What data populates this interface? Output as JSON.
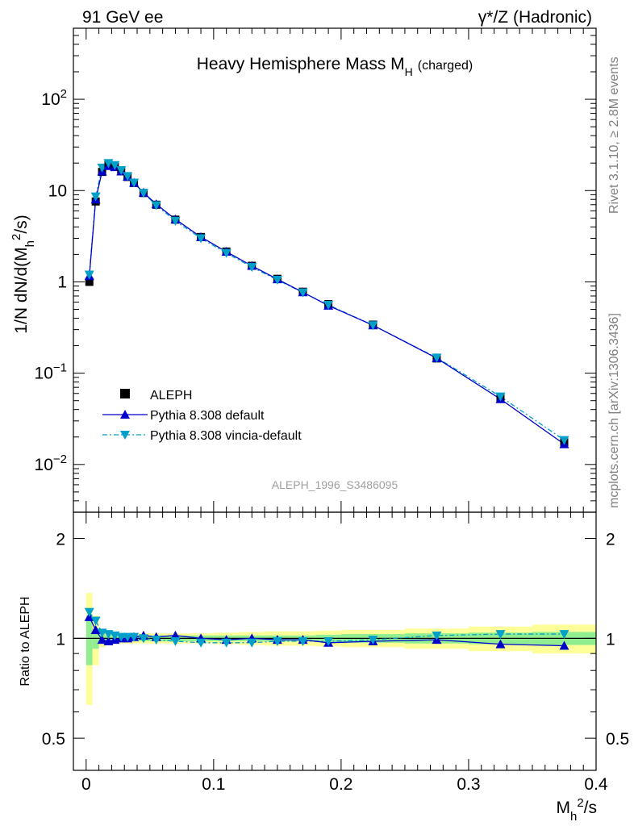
{
  "header": {
    "left": "91 GeV ee",
    "right": "γ*/Z (Hadronic)"
  },
  "side_labels": {
    "rivet": "Rivet 3.1.10, ≥ 2.8M events",
    "mcplots": "mcplots.cern.ch [arXiv:1306.3436]"
  },
  "chart_data": [
    {
      "type": "scatter",
      "panel": "main",
      "title": "Heavy Hemisphere Mass M",
      "title_sub": "H",
      "title_suffix": "(charged)",
      "ylabel": "1/N dN/d(M_h^2/s)",
      "yscale": "log",
      "ylim": [
        0.003,
        600
      ],
      "xlim": [
        -0.01,
        0.4
      ],
      "y_tick_labels": [
        "10^-2",
        "10^-1",
        "1",
        "10",
        "10^2"
      ],
      "analysis_id": "ALEPH_1996_S3486095",
      "legend": {
        "position": "bottom-left",
        "entries": [
          "ALEPH",
          "Pythia 8.308 default",
          "Pythia 8.308 vincia-default"
        ]
      },
      "colors": {
        "aleph": "#000000",
        "default": "#0000cc",
        "vincia": "#00a0c8"
      },
      "x": [
        0.0025,
        0.0075,
        0.0125,
        0.0175,
        0.0225,
        0.0275,
        0.0325,
        0.0375,
        0.045,
        0.055,
        0.07,
        0.09,
        0.11,
        0.13,
        0.15,
        0.17,
        0.19,
        0.225,
        0.275,
        0.325,
        0.375
      ],
      "series": [
        {
          "name": "ALEPH",
          "marker": "square",
          "values": [
            1.0,
            7.6,
            16.0,
            19.0,
            18.4,
            16.3,
            14.1,
            12.1,
            9.4,
            7.0,
            4.8,
            3.1,
            2.15,
            1.5,
            1.08,
            0.78,
            0.57,
            0.34,
            0.145,
            0.054,
            0.0175
          ]
        },
        {
          "name": "Pythia 8.308 default",
          "marker": "triangle-up",
          "values": [
            1.16,
            8.0,
            16.2,
            18.6,
            18.1,
            16.2,
            14.2,
            12.2,
            9.5,
            7.1,
            4.85,
            3.1,
            2.14,
            1.5,
            1.07,
            0.77,
            0.55,
            0.335,
            0.146,
            0.052,
            0.0167
          ]
        },
        {
          "name": "Pythia 8.308 vincia-default",
          "marker": "triangle-down",
          "values": [
            1.2,
            8.6,
            17.8,
            20.0,
            19.0,
            16.7,
            14.4,
            12.2,
            9.4,
            6.9,
            4.65,
            3.0,
            2.07,
            1.45,
            1.05,
            0.765,
            0.56,
            0.335,
            0.148,
            0.0555,
            0.0185
          ]
        }
      ]
    },
    {
      "type": "scatter",
      "panel": "ratio",
      "ylabel": "Ratio to ALEPH",
      "xlabel": "M_h^2/s",
      "ylim": [
        0.4,
        2.4
      ],
      "xlim": [
        -0.01,
        0.4
      ],
      "y_tick_labels": [
        "0.5",
        "1",
        "2"
      ],
      "x_tick_labels": [
        "0",
        "0.1",
        "0.2",
        "0.3",
        "0.4"
      ],
      "bins": [
        [
          0,
          0.005
        ],
        [
          0.005,
          0.01
        ],
        [
          0.01,
          0.015
        ],
        [
          0.015,
          0.02
        ],
        [
          0.02,
          0.025
        ],
        [
          0.025,
          0.03
        ],
        [
          0.03,
          0.035
        ],
        [
          0.035,
          0.04
        ],
        [
          0.04,
          0.05
        ],
        [
          0.05,
          0.06
        ],
        [
          0.06,
          0.08
        ],
        [
          0.08,
          0.1
        ],
        [
          0.1,
          0.12
        ],
        [
          0.12,
          0.14
        ],
        [
          0.14,
          0.16
        ],
        [
          0.16,
          0.18
        ],
        [
          0.18,
          0.2
        ],
        [
          0.2,
          0.25
        ],
        [
          0.25,
          0.3
        ],
        [
          0.3,
          0.35
        ],
        [
          0.35,
          0.4
        ]
      ],
      "band_inner": [
        0.17,
        0.07,
        0.03,
        0.02,
        0.02,
        0.02,
        0.02,
        0.02,
        0.02,
        0.02,
        0.02,
        0.02,
        0.02,
        0.02,
        0.02,
        0.02,
        0.025,
        0.03,
        0.035,
        0.04,
        0.045
      ],
      "band_outer": [
        0.37,
        0.17,
        0.06,
        0.04,
        0.035,
        0.035,
        0.035,
        0.035,
        0.035,
        0.035,
        0.035,
        0.035,
        0.04,
        0.045,
        0.05,
        0.05,
        0.055,
        0.06,
        0.07,
        0.085,
        0.1
      ],
      "colors": {
        "band_inner": "#90ee90",
        "band_outer": "#ffff99"
      },
      "x": [
        0.0025,
        0.0075,
        0.0125,
        0.0175,
        0.0225,
        0.0275,
        0.0325,
        0.0375,
        0.045,
        0.055,
        0.07,
        0.09,
        0.11,
        0.13,
        0.15,
        0.17,
        0.19,
        0.225,
        0.275,
        0.325,
        0.375
      ],
      "series": [
        {
          "name": "Pythia 8.308 default",
          "marker": "triangle-up",
          "values": [
            1.16,
            1.06,
            0.99,
            0.98,
            0.99,
            1.0,
            1.0,
            1.01,
            1.02,
            1.01,
            1.02,
            1.0,
            0.99,
            1.0,
            0.99,
            0.99,
            0.97,
            0.98,
            0.99,
            0.96,
            0.95
          ]
        },
        {
          "name": "Pythia 8.308 vincia-default",
          "marker": "triangle-down",
          "values": [
            1.2,
            1.13,
            1.04,
            1.03,
            1.02,
            1.01,
            1.01,
            1.01,
            1.0,
            0.99,
            0.98,
            0.97,
            0.97,
            0.97,
            0.98,
            0.98,
            0.98,
            0.99,
            1.02,
            1.03,
            1.03
          ]
        }
      ]
    }
  ]
}
